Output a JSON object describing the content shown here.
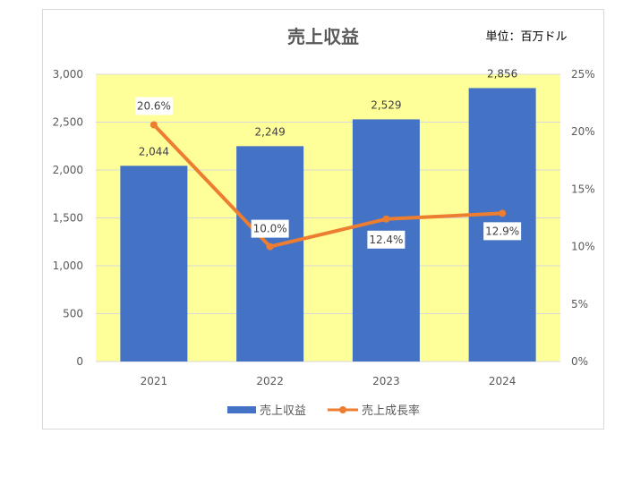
{
  "chart_data": {
    "type": "bar",
    "title": "売上収益",
    "unit_note": "単位：百万ドル",
    "categories": [
      "2021",
      "2022",
      "2023",
      "2024"
    ],
    "series": [
      {
        "name": "売上収益",
        "type": "bar",
        "axis": "left",
        "color": "#4472c4",
        "values": [
          2044,
          2249,
          2529,
          2856
        ],
        "labels": [
          "2,044",
          "2,249",
          "2,529",
          "2,856"
        ]
      },
      {
        "name": "売上成長率",
        "type": "line",
        "axis": "right",
        "color": "#ed7d31",
        "values": [
          20.6,
          10.0,
          12.4,
          12.9
        ],
        "labels": [
          "20.6%",
          "10.0%",
          "12.4%",
          "12.9%"
        ]
      }
    ],
    "y_left": {
      "ylim": [
        0,
        3000
      ],
      "ticks": [
        "0",
        "500",
        "1,000",
        "1,500",
        "2,000",
        "2,500",
        "3,000"
      ]
    },
    "y_right": {
      "ylim": [
        0,
        25
      ],
      "ticks": [
        "0%",
        "5%",
        "10%",
        "15%",
        "20%",
        "25%"
      ]
    },
    "plot_background": "#ffff99",
    "grid": true,
    "legend_position": "bottom"
  }
}
